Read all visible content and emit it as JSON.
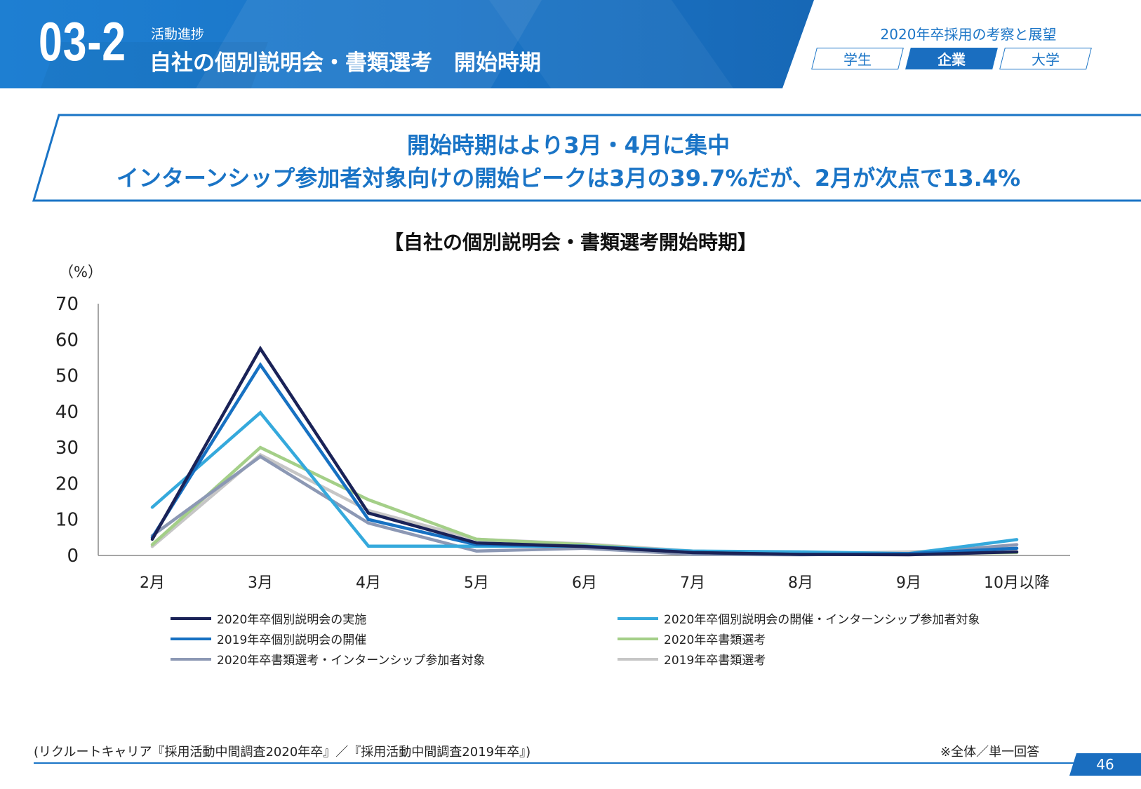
{
  "header": {
    "section_number": "03-2",
    "section_label": "活動進捗",
    "title": "自社の個別説明会・書類選考　開始時期",
    "breadcrumb": "2020年卒採用の考察と展望",
    "tabs": [
      {
        "label": "学生",
        "active": false
      },
      {
        "label": "企業",
        "active": true
      },
      {
        "label": "大学",
        "active": false
      }
    ]
  },
  "headline": {
    "line1": "開始時期はより3月・4月に集中",
    "line2": "インターンシップ参加者対象向けの開始ピークは3月の39.7%だが、2月が次点で13.4%"
  },
  "footer": {
    "source": "(リクルートキャリア『採用活動中間調査2020年卒』／『採用活動中間調査2019年卒』)",
    "note": "※全体／単一回答",
    "page_number": "46"
  },
  "colors": {
    "accent": "#1a74c6",
    "banner": "#1e7fd2"
  },
  "chart_data": {
    "type": "line",
    "title": "【自社の個別説明会・書類選考開始時期】",
    "ylabel": "（%）",
    "xlabel": "",
    "ylim": [
      0,
      70
    ],
    "yticks": [
      0,
      10,
      20,
      30,
      40,
      50,
      60,
      70
    ],
    "categories": [
      "2月",
      "3月",
      "4月",
      "5月",
      "6月",
      "7月",
      "8月",
      "9月",
      "10月以降"
    ],
    "grid": false,
    "legend_position": "bottom",
    "series": [
      {
        "name": "2020年卒個別説明会の実施",
        "color": "#1a2257",
        "values": [
          4.5,
          57.5,
          11.8,
          3.5,
          2.5,
          0.8,
          0.3,
          0.2,
          1.0
        ]
      },
      {
        "name": "2020年卒個別説明会の開催・インターンシップ参加者対象",
        "color": "#35a9dc",
        "values": [
          13.4,
          39.7,
          2.6,
          2.6,
          2.6,
          1.2,
          1.0,
          0.5,
          4.4
        ]
      },
      {
        "name": "2019年卒個別説明会の開催",
        "color": "#1771c2",
        "values": [
          5.0,
          53.0,
          10.0,
          3.0,
          2.6,
          0.8,
          0.3,
          0.5,
          2.0
        ]
      },
      {
        "name": "2020年卒書類選考",
        "color": "#a4cf88",
        "values": [
          3.0,
          30.0,
          15.5,
          4.5,
          3.0,
          1.0,
          0.3,
          0.5,
          0.8
        ]
      },
      {
        "name": "2020年卒書類選考・インターンシップ参加者対象",
        "color": "#8c98b4",
        "values": [
          5.5,
          27.5,
          9.0,
          1.2,
          2.0,
          0.3,
          0.2,
          0.5,
          3.0
        ]
      },
      {
        "name": "2019年卒書類選考",
        "color": "#c6c6c6",
        "values": [
          2.5,
          28.0,
          12.5,
          4.5,
          3.2,
          1.2,
          0.5,
          1.0,
          2.0
        ]
      }
    ]
  }
}
